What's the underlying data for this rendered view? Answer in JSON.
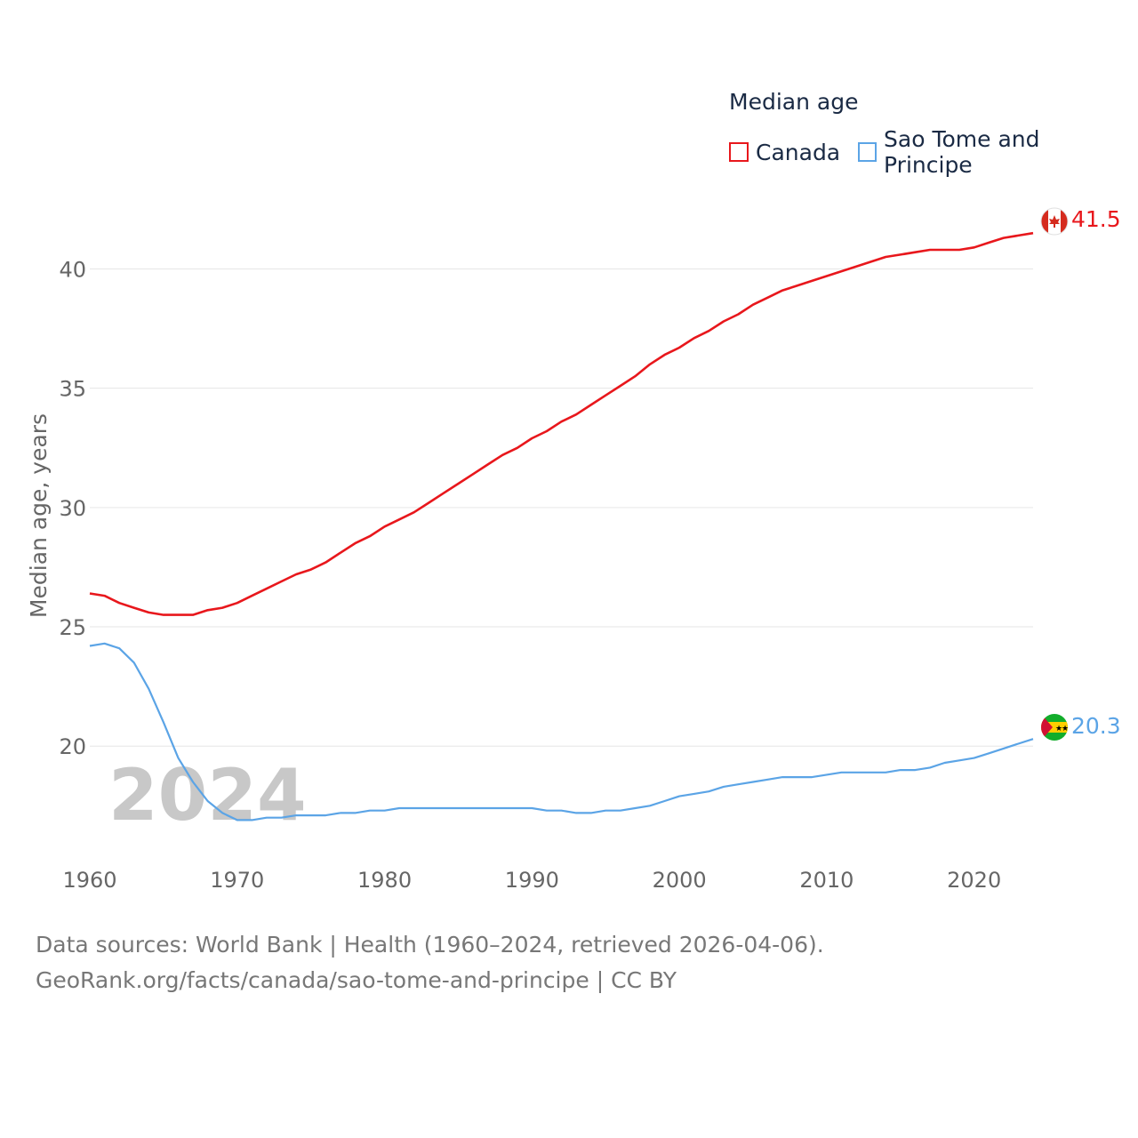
{
  "legend": {
    "title": "Median age",
    "items": [
      {
        "label": "Canada",
        "color": "#e8171c"
      },
      {
        "label": "Sao Tome and Principe",
        "color": "#5ba4e6"
      }
    ]
  },
  "year_watermark": "2024",
  "end_labels": {
    "canada": "41.5",
    "stp": "20.3"
  },
  "footer": {
    "line1": "Data sources: World Bank | Health (1960–2024, retrieved 2026-04-06).",
    "line2": "GeoRank.org/facts/canada/sao-tome-and-principe | CC BY"
  },
  "chart_data": {
    "type": "line",
    "title": "Median age",
    "xlabel": "",
    "ylabel": "Median age, years",
    "xlim": [
      1960,
      2024
    ],
    "ylim": [
      15.5,
      42.7
    ],
    "yticks": [
      20,
      25,
      30,
      35,
      40
    ],
    "xticks": [
      1960,
      1970,
      1980,
      1990,
      2000,
      2010,
      2020
    ],
    "x": [
      1960,
      1961,
      1962,
      1963,
      1964,
      1965,
      1966,
      1967,
      1968,
      1969,
      1970,
      1971,
      1972,
      1973,
      1974,
      1975,
      1976,
      1977,
      1978,
      1979,
      1980,
      1981,
      1982,
      1983,
      1984,
      1985,
      1986,
      1987,
      1988,
      1989,
      1990,
      1991,
      1992,
      1993,
      1994,
      1995,
      1996,
      1997,
      1998,
      1999,
      2000,
      2001,
      2002,
      2003,
      2004,
      2005,
      2006,
      2007,
      2008,
      2009,
      2010,
      2011,
      2012,
      2013,
      2014,
      2015,
      2016,
      2017,
      2018,
      2019,
      2020,
      2021,
      2022,
      2023,
      2024
    ],
    "series": [
      {
        "name": "Canada",
        "color": "#e8171c",
        "values": [
          26.4,
          26.3,
          26.0,
          25.8,
          25.6,
          25.5,
          25.5,
          25.5,
          25.7,
          25.8,
          26.0,
          26.3,
          26.6,
          26.9,
          27.2,
          27.4,
          27.7,
          28.1,
          28.5,
          28.8,
          29.2,
          29.5,
          29.8,
          30.2,
          30.6,
          31.0,
          31.4,
          31.8,
          32.2,
          32.5,
          32.9,
          33.2,
          33.6,
          33.9,
          34.3,
          34.7,
          35.1,
          35.5,
          36.0,
          36.4,
          36.7,
          37.1,
          37.4,
          37.8,
          38.1,
          38.5,
          38.8,
          39.1,
          39.3,
          39.5,
          39.7,
          39.9,
          40.1,
          40.3,
          40.5,
          40.6,
          40.7,
          40.8,
          40.8,
          40.8,
          40.9,
          41.1,
          41.3,
          41.4,
          41.5
        ]
      },
      {
        "name": "Sao Tome and Principe",
        "color": "#5ba4e6",
        "values": [
          24.2,
          24.3,
          24.1,
          23.5,
          22.4,
          21.0,
          19.5,
          18.5,
          17.7,
          17.2,
          16.9,
          16.9,
          17.0,
          17.0,
          17.1,
          17.1,
          17.1,
          17.2,
          17.2,
          17.3,
          17.3,
          17.4,
          17.4,
          17.4,
          17.4,
          17.4,
          17.4,
          17.4,
          17.4,
          17.4,
          17.4,
          17.3,
          17.3,
          17.2,
          17.2,
          17.3,
          17.3,
          17.4,
          17.5,
          17.7,
          17.9,
          18.0,
          18.1,
          18.3,
          18.4,
          18.5,
          18.6,
          18.7,
          18.7,
          18.7,
          18.8,
          18.9,
          18.9,
          18.9,
          18.9,
          19.0,
          19.0,
          19.1,
          19.3,
          19.4,
          19.5,
          19.7,
          19.9,
          20.1,
          20.3
        ]
      }
    ]
  }
}
